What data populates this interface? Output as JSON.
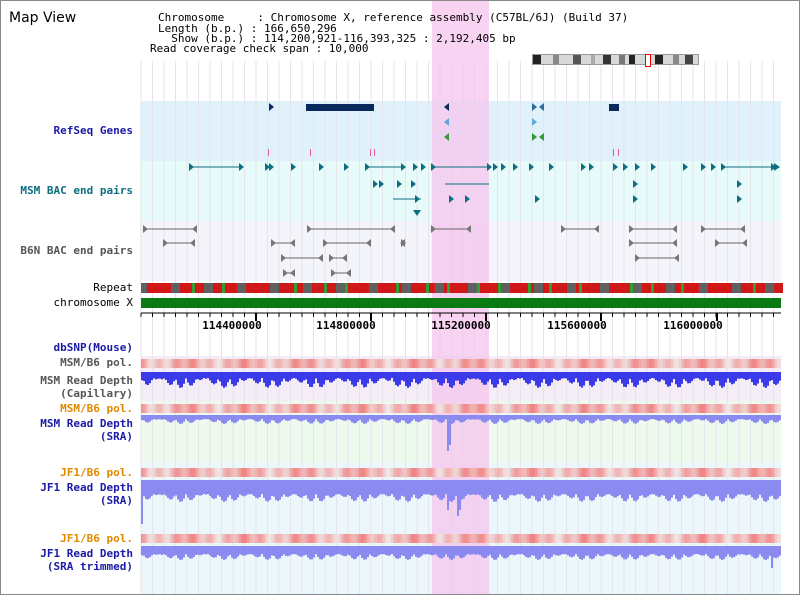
{
  "view_title": "Map View",
  "header": {
    "line1": "Chromosome     : Chromosome X, reference assembly (C57BL/6J) (Build 37)",
    "line2": "Length (b.p.) : 166,650,296",
    "line3": "  Show (b.p.) : 114,200,921-116,393,325 : 2,192,405 bp",
    "line4": "Read coverage check span : 10,000"
  },
  "tracks": {
    "refseq": "RefSeq Genes",
    "msm_bac": "MSM BAC end pairs",
    "b6n_bac": "B6N BAC end pairs",
    "repeat": "Repeat",
    "chromosome": "chromosome X",
    "dbsnp": "dbSNP(Mouse)",
    "msm_b6_pol_1": "MSM/B6 pol.",
    "msm_depth_cap_1": "MSM Read Depth",
    "msm_depth_cap_2": "(Capillary)",
    "msm_b6_pol_2": "MSM/B6 pol.",
    "msm_depth_sra_1": "MSM Read Depth",
    "msm_depth_sra_2": "(SRA)",
    "jf1_pol_1": "JF1/B6 pol.",
    "jf1_depth_sra_1": "JF1 Read Depth",
    "jf1_depth_sra_2": "(SRA)",
    "jf1_pol_2": "JF1/B6 pol.",
    "jf1_depth_trim_1": "JF1 Read Depth",
    "jf1_depth_trim_2": "(SRA trimmed)"
  },
  "ruler": {
    "ticks": [
      "114400000",
      "114800000",
      "115200000",
      "115600000",
      "116000000"
    ]
  },
  "colors": {
    "refseq_bg": "#e1f1fb",
    "msm_bg": "#e8fbfb",
    "b6n_bg": "#f4f4fb",
    "highlight": "#f6c6ee",
    "chromosome": "#0a7a12",
    "depth_blue": "#3a3ae8",
    "depth_light": "#8a8af0",
    "pol_red": "#f04040"
  }
}
